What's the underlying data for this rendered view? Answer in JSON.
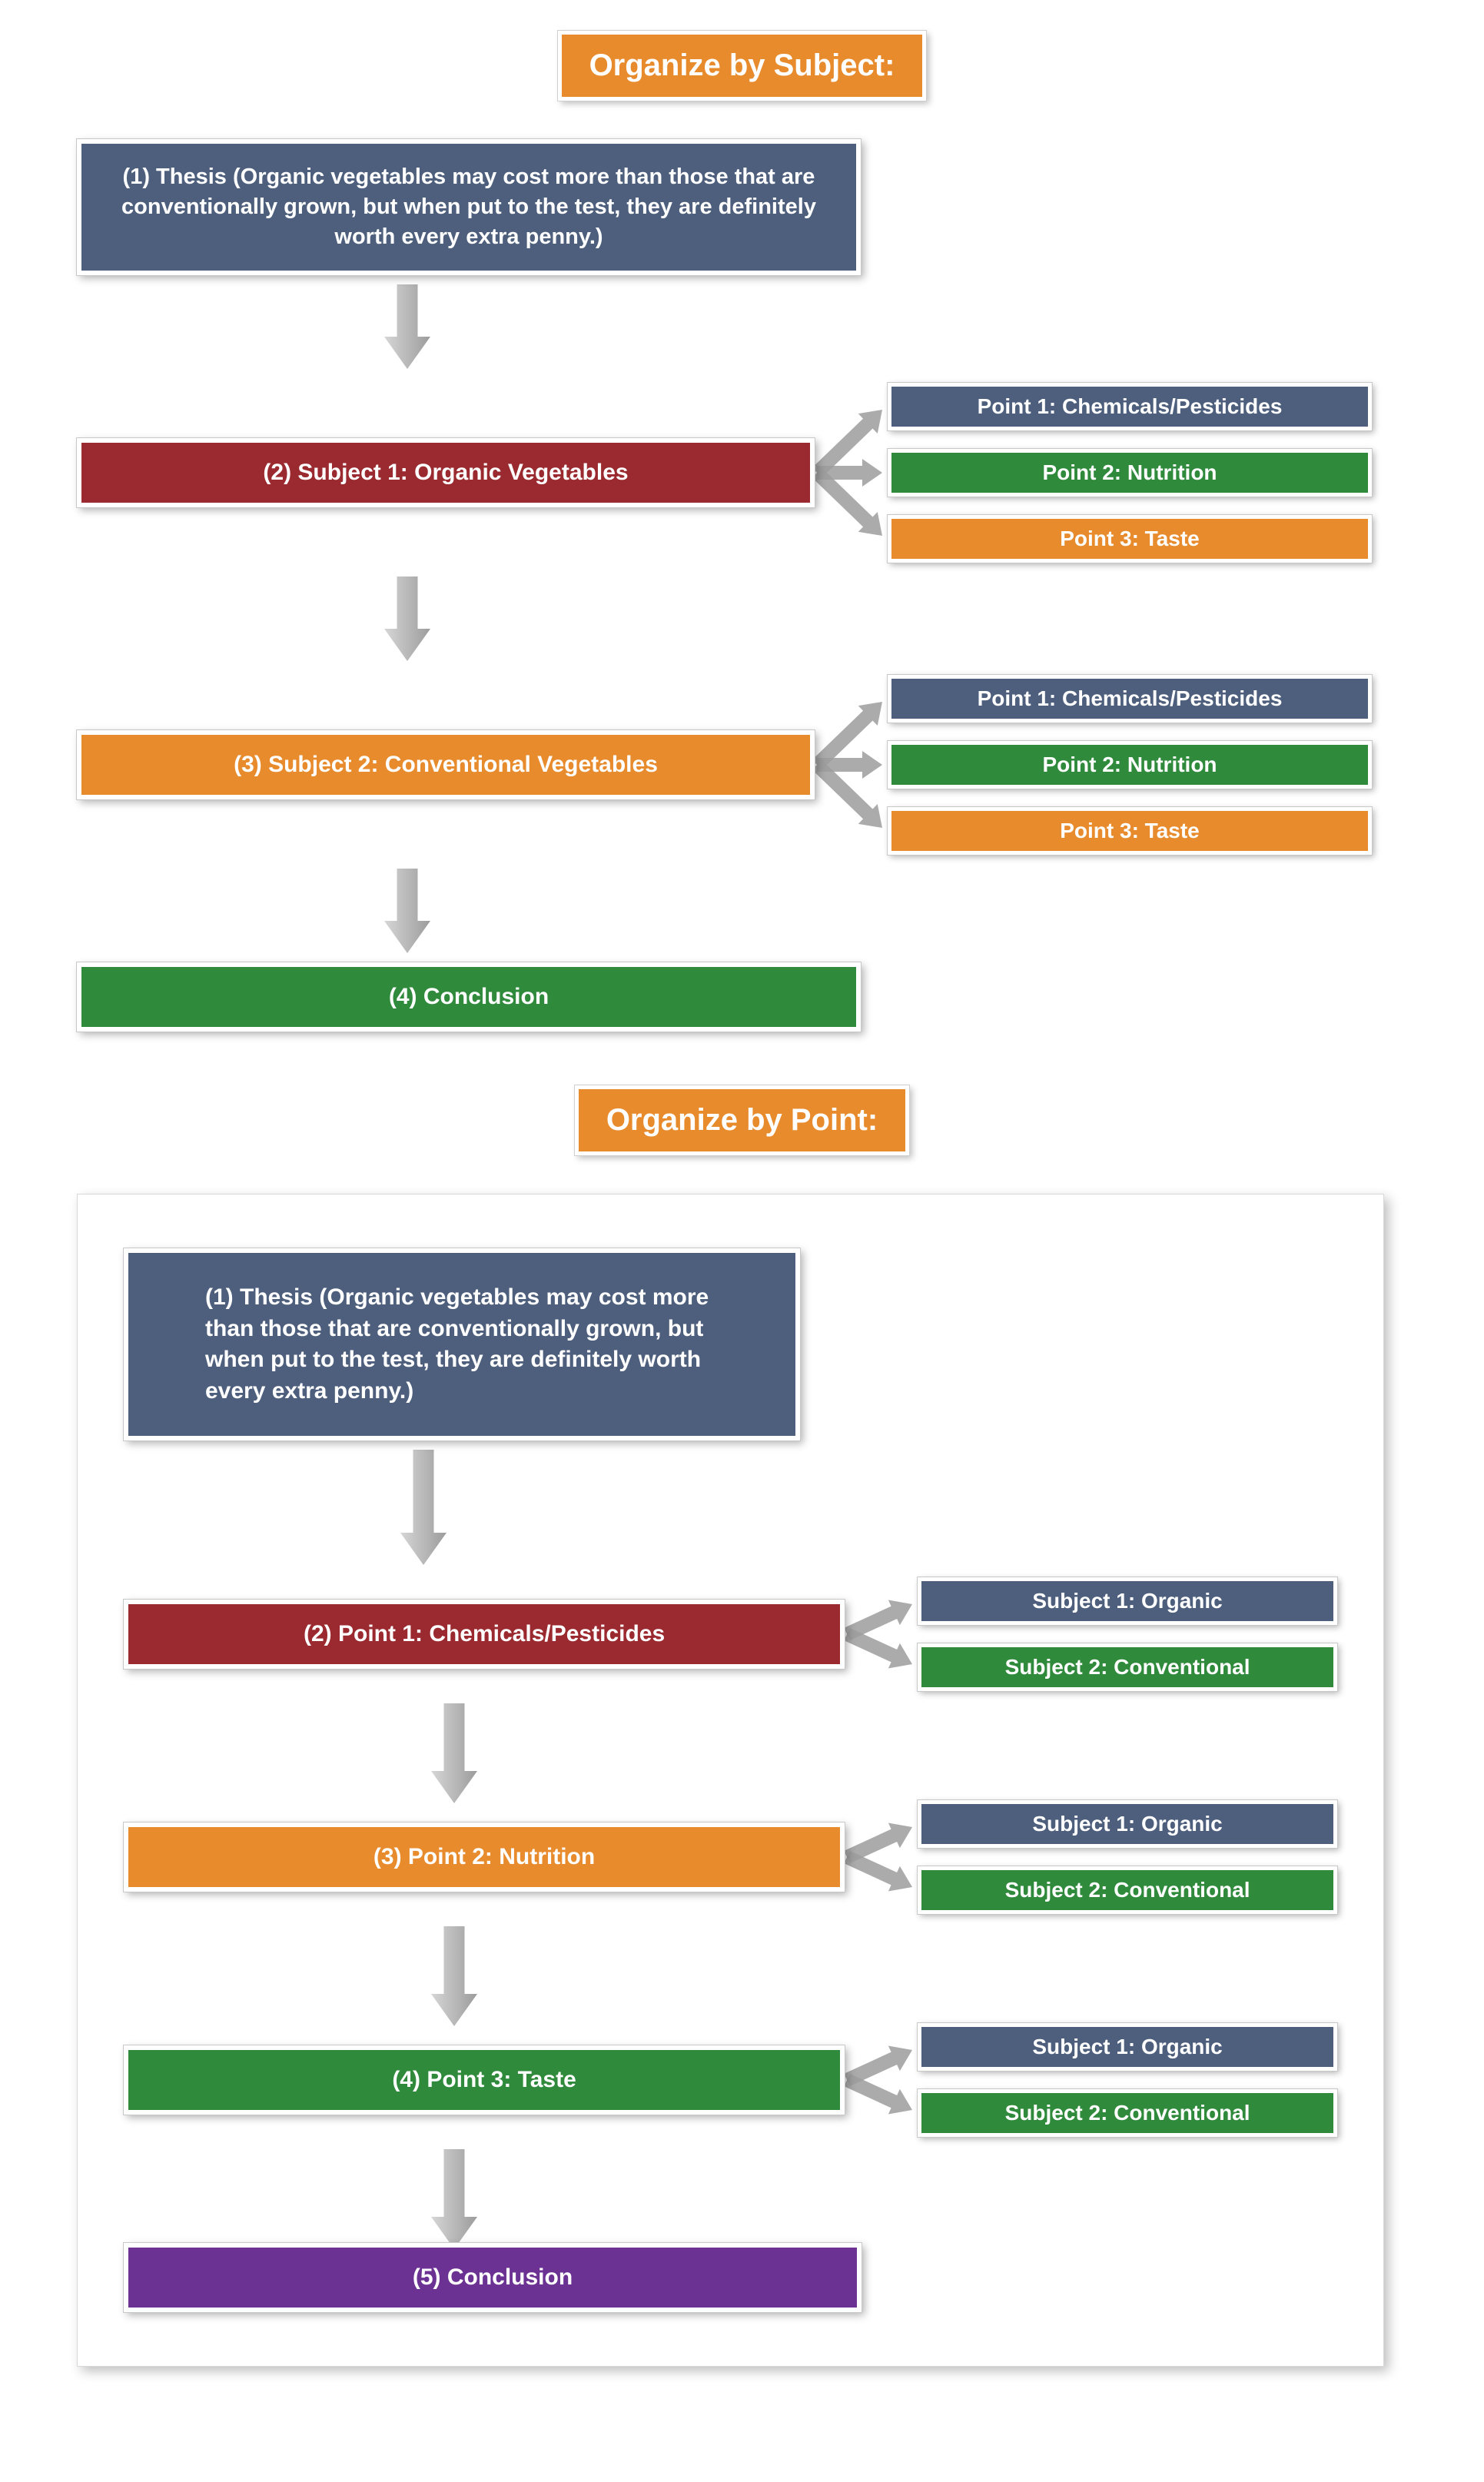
{
  "colors": {
    "orange": "#e88b2d",
    "slate": "#4d5f7c",
    "maroon": "#9a2a2f",
    "green": "#2f8a3c",
    "purple": "#6b3293",
    "arrow_light": "#d6d6d6",
    "arrow_dark": "#9c9c9c"
  },
  "section1": {
    "title": "Organize by Subject:",
    "thesis": "(1) Thesis (Organic vegetables may cost more than those that are conventionally grown, but when put to the test, they are definitely worth every extra penny.)",
    "rows": [
      {
        "label": "(2) Subject 1: Organic Vegetables",
        "color": "maroon",
        "points": [
          {
            "label": "Point 1: Chemicals/Pesticides",
            "color": "slate"
          },
          {
            "label": "Point 2: Nutrition",
            "color": "green"
          },
          {
            "label": "Point 3: Taste",
            "color": "orange"
          }
        ]
      },
      {
        "label": "(3) Subject 2: Conventional Vegetables",
        "color": "orange",
        "points": [
          {
            "label": "Point 1: Chemicals/Pesticides",
            "color": "slate"
          },
          {
            "label": "Point 2: Nutrition",
            "color": "green"
          },
          {
            "label": "Point 3: Taste",
            "color": "orange"
          }
        ]
      }
    ],
    "conclusion": {
      "label": "(4) Conclusion",
      "color": "green"
    }
  },
  "section2": {
    "title": "Organize by Point:",
    "thesis": "(1) Thesis (Organic vegetables may cost more than those that are conventionally grown, but when put to the test, they are definitely worth every extra penny.)",
    "rows": [
      {
        "label": "(2) Point 1: Chemicals/Pesticides",
        "color": "maroon",
        "subjects": [
          {
            "label": "Subject 1: Organic",
            "color": "slate"
          },
          {
            "label": "Subject 2: Conventional",
            "color": "green"
          }
        ]
      },
      {
        "label": "(3) Point 2: Nutrition",
        "color": "orange",
        "subjects": [
          {
            "label": "Subject 1: Organic",
            "color": "slate"
          },
          {
            "label": "Subject 2: Conventional",
            "color": "green"
          }
        ]
      },
      {
        "label": "(4) Point 3: Taste",
        "color": "green",
        "subjects": [
          {
            "label": "Subject 1: Organic",
            "color": "slate"
          },
          {
            "label": "Subject 2: Conventional",
            "color": "green"
          }
        ]
      }
    ],
    "conclusion": {
      "label": "(5) Conclusion",
      "color": "purple"
    }
  },
  "layout": {
    "main_node_height": 90,
    "thesis_width_s1": 1020,
    "thesis_width_s2": 880,
    "side_node_height": 56
  }
}
